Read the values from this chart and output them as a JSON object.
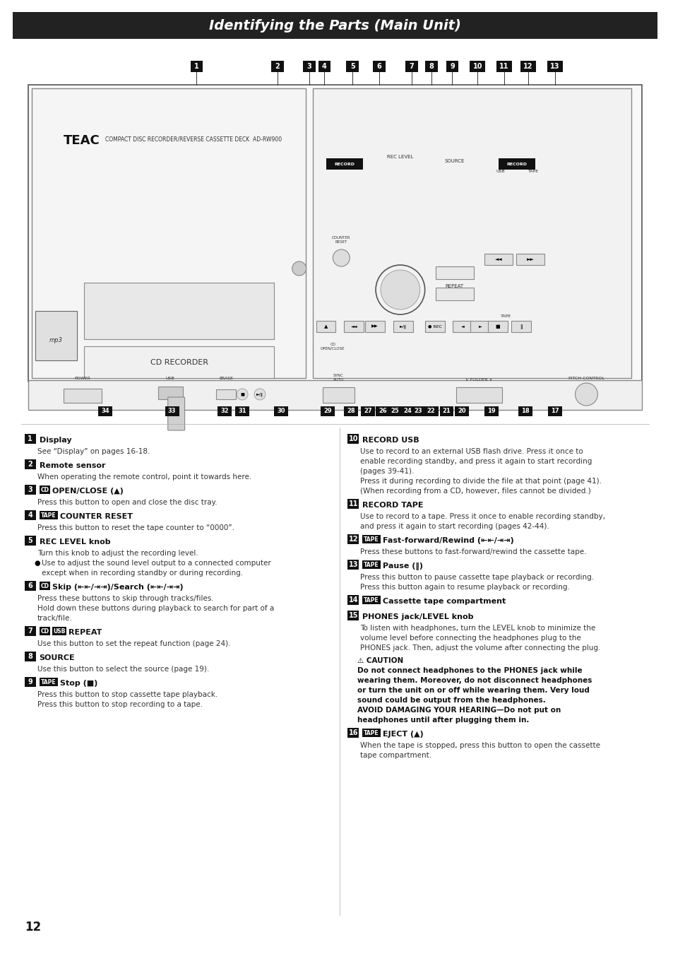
{
  "title": "Identifying the Parts (Main Unit)",
  "title_bg": "#222222",
  "title_color": "#ffffff",
  "page_bg": "#ffffff",
  "page_number": "12",
  "items_left": [
    {
      "num": "1",
      "header": "Display",
      "body": "See “Display” on pages 16-18."
    },
    {
      "num": "2",
      "header": "Remote sensor",
      "body": "When operating the remote control, point it towards here."
    },
    {
      "num": "3",
      "tag": "CD",
      "header": "OPEN/CLOSE (▲)",
      "body": "Press this button to open and close the disc tray."
    },
    {
      "num": "4",
      "tag": "TAPE",
      "header": "COUNTER RESET",
      "body": "Press this button to reset the tape counter to “0000”."
    },
    {
      "num": "5",
      "header": "REC LEVEL knob",
      "body": "Turn this knob to adjust the recording level.",
      "bullet": "Use to adjust the sound level output to a connected computer\nexcept when in recording standby or during recording."
    },
    {
      "num": "6",
      "tag": "CD",
      "header": "Skip (⇤⇤/⇥⇥)/Search (⇤⇤/⇥⇥)",
      "body": "Press these buttons to skip through tracks/files.\nHold down these buttons during playback to search for part of a\ntrack/file."
    },
    {
      "num": "7",
      "tag": "CD",
      "tag2": "USB",
      "header": "REPEAT",
      "body": "Use this button to set the repeat function (page 24)."
    },
    {
      "num": "8",
      "header": "SOURCE",
      "body": "Use this button to select the source (page 19)."
    },
    {
      "num": "9",
      "tag": "TAPE",
      "header": "Stop (■)",
      "body": "Press this button to stop cassette tape playback.\nPress this button to stop recording to a tape."
    }
  ],
  "items_right": [
    {
      "num": "10",
      "header": "RECORD USB",
      "body": "Use to record to an external USB flash drive. Press it once to\nenable recording standby, and press it again to start recording\n(pages 39-41).\nPress it during recording to divide the file at that point (page 41).\n(When recording from a CD, however, files cannot be divided.)"
    },
    {
      "num": "11",
      "header": "RECORD TAPE",
      "body": "Use to record to a tape. Press it once to enable recording standby,\nand press it again to start recording (pages 42-44)."
    },
    {
      "num": "12",
      "tag": "TAPE",
      "header": "Fast-forward/Rewind (⇤⇤/⇥⇥)",
      "body": "Press these buttons to fast-forward/rewind the cassette tape."
    },
    {
      "num": "13",
      "tag": "TAPE",
      "header": "Pause (‖)",
      "body": "Press this button to pause cassette tape playback or recording.\nPress this button again to resume playback or recording."
    },
    {
      "num": "14",
      "tag": "TAPE",
      "header": "Cassette tape compartment",
      "body": ""
    },
    {
      "num": "15",
      "header": "PHONES jack/LEVEL knob",
      "body": "To listen with headphones, turn the LEVEL knob to minimize the\nvolume level before connecting the headphones plug to the\nPHONES jack. Then, adjust the volume after connecting the plug.",
      "caution_title": "CAUTION",
      "caution_body": "Do not connect headphones to the PHONES jack while\nwearing them. Moreover, do not disconnect headphones\nor turn the unit on or off while wearing them. Very loud\nsound could be output from the headphones.\nAVOID DAMAGING YOUR HEARING—Do not put on\nheadphones until after plugging them in."
    },
    {
      "num": "16",
      "tag": "TAPE",
      "header": "EJECT (▲)",
      "body": "When the tape is stopped, press this button to open the cassette\ntape compartment."
    }
  ]
}
